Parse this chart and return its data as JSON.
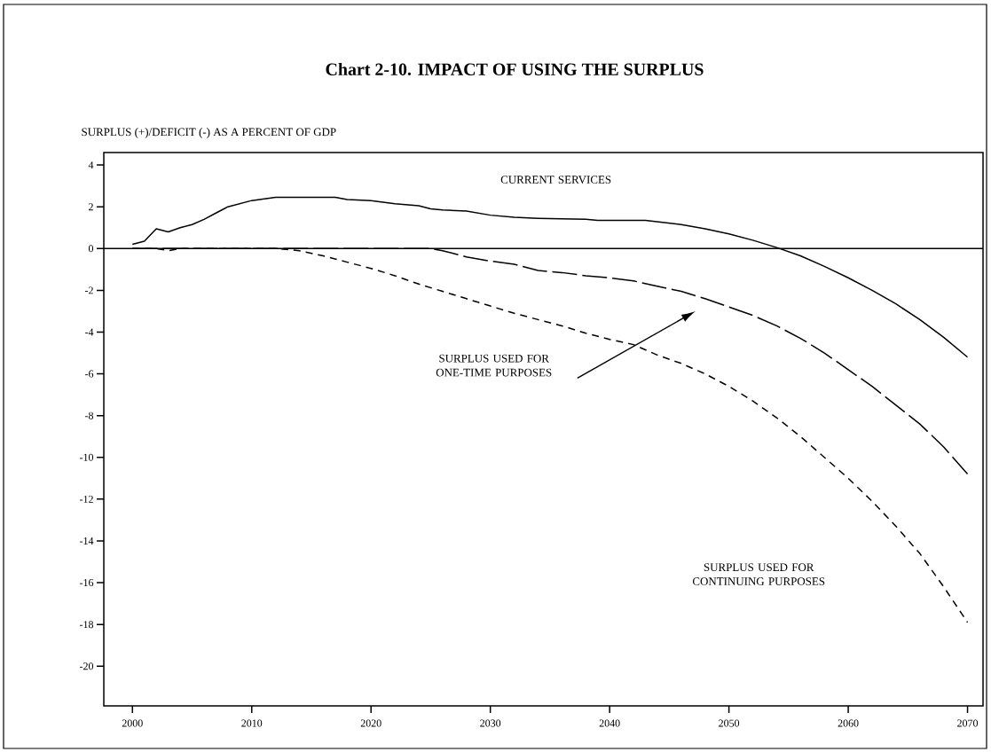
{
  "chart_data": {
    "type": "line",
    "title": "Chart 2-10.  IMPACT OF USING THE SURPLUS",
    "ylabel": "SURPLUS (+)/DEFICIT (-)  AS  A  PERCENT  OF  GDP",
    "xlim": [
      1997.6,
      2071.3
    ],
    "ylim": [
      -21.9,
      4.6
    ],
    "xticks": [
      2000,
      2010,
      2020,
      2030,
      2040,
      2050,
      2060,
      2070
    ],
    "yticks": [
      -20,
      -18,
      -16,
      -14,
      -12,
      -10,
      -8,
      -6,
      -4,
      -2,
      0,
      2,
      4
    ],
    "grid": false,
    "marker": "none",
    "annotations": [
      "SURPLUS  USED  FOR ONE-TIME  PURPOSES",
      "SURPLUS  USED  FOR CONTINUING  PURPOSES"
    ],
    "ref_lines": [
      {
        "axis": "y",
        "value": 0,
        "line_style": "solid"
      }
    ],
    "series": [
      {
        "name": "CURRENT  SERVICES",
        "color": "#000000",
        "line_style": "solid",
        "x": [
          2000,
          2001,
          2002,
          2003,
          2004,
          2005,
          2006,
          2007,
          2008,
          2010,
          2012,
          2017,
          2018,
          2020,
          2022,
          2024,
          2025,
          2026,
          2028,
          2030,
          2032,
          2034,
          2038,
          2039,
          2043,
          2046,
          2048,
          2050,
          2052,
          2054,
          2056,
          2058,
          2060,
          2062,
          2064,
          2066,
          2068,
          2070
        ],
        "values": [
          0.2,
          0.35,
          0.95,
          0.8,
          1.0,
          1.15,
          1.4,
          1.7,
          2.0,
          2.3,
          2.45,
          2.45,
          2.35,
          2.3,
          2.15,
          2.05,
          1.9,
          1.85,
          1.8,
          1.6,
          1.5,
          1.45,
          1.4,
          1.35,
          1.35,
          1.15,
          0.95,
          0.7,
          0.4,
          0.05,
          -0.35,
          -0.85,
          -1.4,
          -2.0,
          -2.65,
          -3.4,
          -4.25,
          -5.2
        ]
      },
      {
        "color": "#000000",
        "line_style": "dashed",
        "x": [
          2000,
          2025,
          2026,
          2028,
          2030,
          2032,
          2034,
          2036,
          2038,
          2040,
          2042,
          2044,
          2046,
          2048,
          2050,
          2052,
          2054,
          2056,
          2058,
          2060,
          2062,
          2064,
          2066,
          2068,
          2070
        ],
        "values": [
          0,
          0,
          -0.1,
          -0.4,
          -0.6,
          -0.75,
          -1.05,
          -1.15,
          -1.3,
          -1.4,
          -1.55,
          -1.8,
          -2.05,
          -2.4,
          -2.8,
          -3.2,
          -3.7,
          -4.3,
          -5.0,
          -5.8,
          -6.6,
          -7.5,
          -8.4,
          -9.5,
          -10.8
        ]
      },
      {
        "color": "#000000",
        "line_style": "dashed",
        "x": [
          2000,
          2002,
          2003,
          2004,
          2012,
          2014,
          2016,
          2018,
          2020,
          2022,
          2024,
          2026,
          2028,
          2030,
          2032,
          2034,
          2036,
          2038,
          2040,
          2042,
          2044,
          2046,
          2048,
          2050,
          2052,
          2054,
          2056,
          2058,
          2060,
          2062,
          2064,
          2066,
          2068,
          2070
        ],
        "values": [
          0,
          0,
          -0.1,
          0,
          0,
          -0.1,
          -0.35,
          -0.65,
          -0.95,
          -1.3,
          -1.7,
          -2.05,
          -2.4,
          -2.75,
          -3.1,
          -3.4,
          -3.7,
          -4.05,
          -4.35,
          -4.6,
          -5.1,
          -5.5,
          -6.0,
          -6.6,
          -7.3,
          -8.1,
          -9.0,
          -10.0,
          -11.0,
          -12.1,
          -13.3,
          -14.6,
          -16.2,
          -17.9
        ]
      }
    ]
  }
}
